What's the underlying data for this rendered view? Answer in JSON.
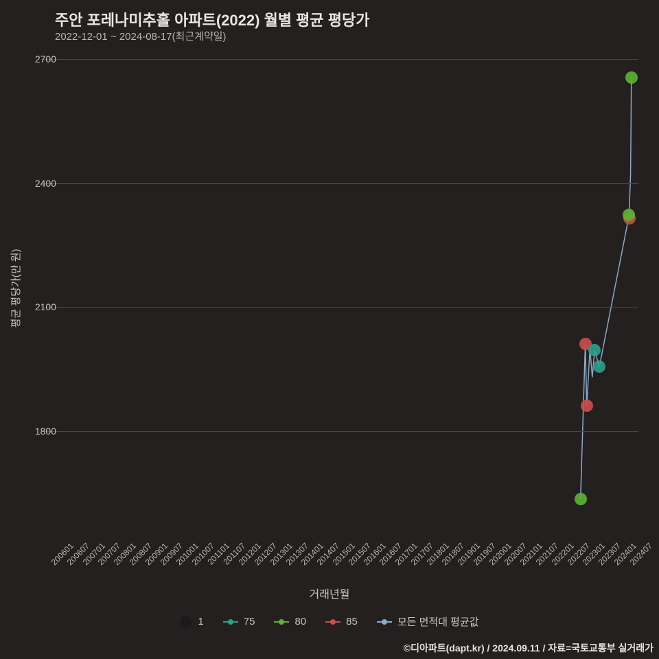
{
  "title": "주안 포레나미추홀 아파트(2022) 월별 평균 평당가",
  "subtitle": "2022-12-01 ~ 2024-08-17(최근계약일)",
  "y_axis_title": "평균 평당가(만 원)",
  "x_axis_title": "거래년월",
  "credit": "©디아파트(dapt.kr) / 2024.09.11 / 자료=국토교통부 실거래가",
  "background_color": "#23201f",
  "grid_color": "#4a4746",
  "text_color": "#c8c5c3",
  "title_color": "#e8e6e5",
  "title_fontsize": 22,
  "subtitle_fontsize": 15,
  "axis_label_fontsize": 15,
  "tick_fontsize": 14,
  "x_tick_fontsize": 12,
  "legend_fontsize": 15,
  "credit_fontsize": 14,
  "ylim": [
    1550,
    2730
  ],
  "y_ticks": [
    1800,
    2100,
    2400,
    2700
  ],
  "xlim_index": [
    0,
    38.2
  ],
  "x_ticks": [
    "200601",
    "200607",
    "200701",
    "200707",
    "200801",
    "200807",
    "200901",
    "200907",
    "201001",
    "201007",
    "201101",
    "201107",
    "201201",
    "201207",
    "201301",
    "201307",
    "201401",
    "201407",
    "201501",
    "201507",
    "201601",
    "201607",
    "201701",
    "201707",
    "201801",
    "201807",
    "201901",
    "201907",
    "202001",
    "202007",
    "202101",
    "202107",
    "202201",
    "202207",
    "202301",
    "202307",
    "202401",
    "202407"
  ],
  "legend": {
    "items": [
      {
        "label": "1",
        "type": "swatch",
        "color": "#1a1a1a"
      },
      {
        "label": "75",
        "type": "line-dot",
        "color": "#2ca089"
      },
      {
        "label": "80",
        "type": "line-dot",
        "color": "#5fb233"
      },
      {
        "label": "85",
        "type": "line-dot",
        "color": "#c94f4f"
      },
      {
        "label": "모든 면적대 평균값",
        "type": "line-dot",
        "color": "#8fa8c9"
      }
    ]
  },
  "series": {
    "marker_radius": 9,
    "line_width": 1.5,
    "avg_line_color": "#8fa8c9",
    "s75": {
      "color": "#2ca089",
      "points": [
        {
          "xi": 35.4,
          "y": 1995
        },
        {
          "xi": 35.7,
          "y": 1955
        }
      ]
    },
    "s80": {
      "color": "#5fb233",
      "points": [
        {
          "xi": 34.5,
          "y": 1635
        },
        {
          "xi": 37.6,
          "y": 2322
        },
        {
          "xi": 37.75,
          "y": 2655
        }
      ]
    },
    "s85": {
      "color": "#c94f4f",
      "points": [
        {
          "xi": 34.8,
          "y": 2010
        },
        {
          "xi": 34.9,
          "y": 1860
        },
        {
          "xi": 37.65,
          "y": 2315
        }
      ]
    },
    "avg_line": [
      {
        "xi": 34.5,
        "y": 1635
      },
      {
        "xi": 34.8,
        "y": 2010
      },
      {
        "xi": 34.9,
        "y": 1860
      },
      {
        "xi": 35.1,
        "y": 2000
      },
      {
        "xi": 35.25,
        "y": 1930
      },
      {
        "xi": 35.4,
        "y": 1995
      },
      {
        "xi": 35.7,
        "y": 1955
      },
      {
        "xi": 37.6,
        "y": 2320
      },
      {
        "xi": 37.7,
        "y": 2420
      },
      {
        "xi": 37.75,
        "y": 2655
      }
    ]
  }
}
